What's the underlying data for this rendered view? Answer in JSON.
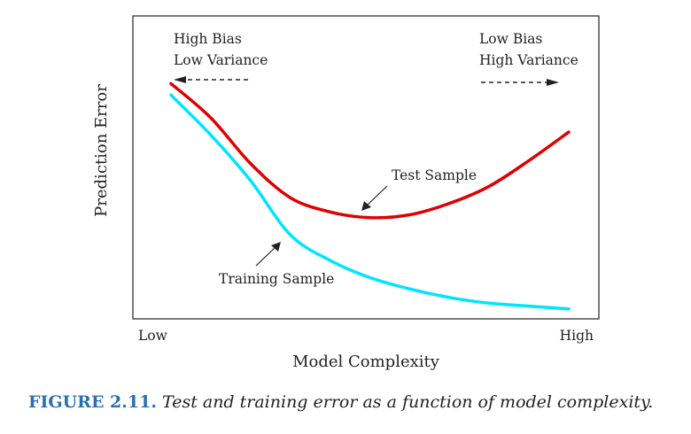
{
  "chart_data": {
    "type": "line",
    "xlabel": "Model Complexity",
    "ylabel": "Prediction Error",
    "x_ticks": [
      "Low",
      "High"
    ],
    "x": [
      0.0,
      0.1,
      0.2,
      0.3,
      0.4,
      0.5,
      0.6,
      0.7,
      0.8,
      0.9,
      1.0
    ],
    "series": [
      {
        "name": "Test Sample",
        "color": "#e00000",
        "values": [
          0.8,
          0.68,
          0.52,
          0.4,
          0.35,
          0.33,
          0.34,
          0.38,
          0.44,
          0.53,
          0.63
        ]
      },
      {
        "name": "Training Sample",
        "color": "#00e5ff",
        "values": [
          0.76,
          0.62,
          0.46,
          0.27,
          0.18,
          0.12,
          0.08,
          0.05,
          0.03,
          0.02,
          0.01
        ]
      }
    ],
    "xlim": [
      0,
      1
    ],
    "ylim": [
      0,
      1
    ],
    "annotations": {
      "left_line1": "High Bias",
      "left_line2": "Low Variance",
      "right_line1": "Low Bias",
      "right_line2": "High Variance",
      "test_label": "Test Sample",
      "train_label": "Training Sample"
    }
  },
  "caption": {
    "figure_label": "FIGURE 2.11.",
    "text": "Test and training error as a function of model complexity."
  }
}
